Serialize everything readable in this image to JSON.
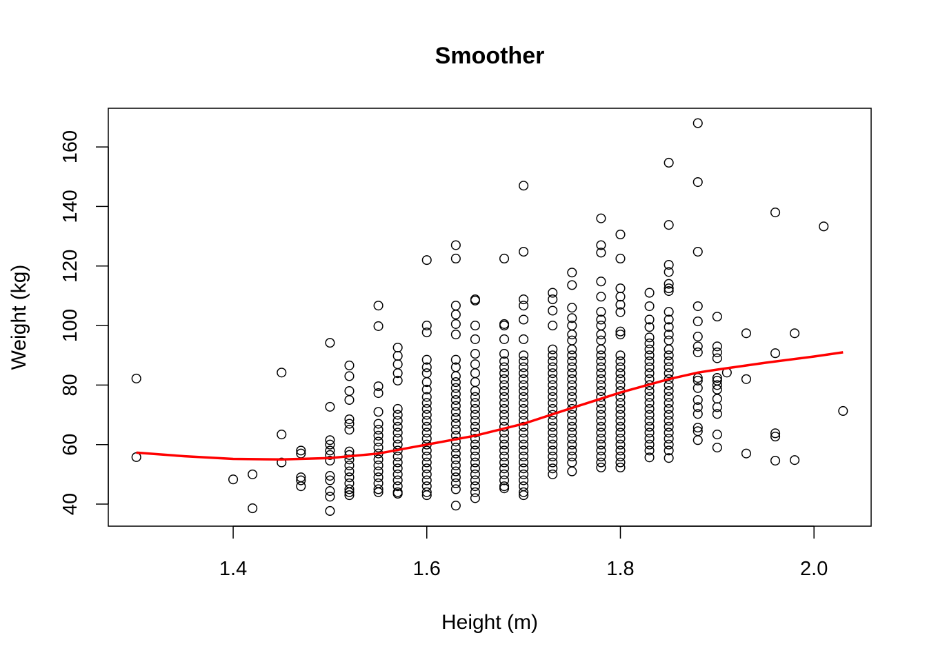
{
  "chart_data": {
    "type": "scatter",
    "title": "Smoother",
    "xlabel": "Height (m)",
    "ylabel": "Weight (kg)",
    "xlim": [
      1.271,
      2.059
    ],
    "ylim": [
      32.6,
      173
    ],
    "xticks": [
      1.4,
      1.6,
      1.8,
      2.0
    ],
    "xtick_labels": [
      "1.4",
      "1.6",
      "1.8",
      "2.0"
    ],
    "yticks": [
      40,
      60,
      80,
      100,
      120,
      140,
      160
    ],
    "ytick_labels": [
      "40",
      "60",
      "80",
      "100",
      "120",
      "140",
      "160"
    ],
    "grid": false,
    "point_color": "#000000",
    "smoother_color": "#ff0000",
    "points": [
      {
        "x": 1.3,
        "w": [
          82.2,
          55.8
        ]
      },
      {
        "x": 1.4,
        "w": [
          48.3
        ]
      },
      {
        "x": 1.42,
        "w": [
          50,
          38.6
        ]
      },
      {
        "x": 1.45,
        "w": [
          84.2,
          63.4,
          54
        ]
      },
      {
        "x": 1.47,
        "w": [
          58,
          57,
          49,
          48,
          46
        ]
      },
      {
        "x": 1.5,
        "w": [
          94.2,
          72.7,
          61.5,
          60,
          58,
          56.5,
          54.6,
          49.5,
          48,
          44.4,
          42.5,
          37.7
        ]
      },
      {
        "x": 1.52,
        "w": [
          86.6,
          83,
          78,
          75,
          68.5,
          67,
          65,
          57.7,
          56.5,
          55,
          53,
          51,
          49,
          47,
          45,
          44,
          43
        ]
      },
      {
        "x": 1.55,
        "w": [
          106.7,
          99.8,
          79.6,
          77.3,
          71,
          67,
          65,
          63,
          61,
          59,
          57,
          55,
          53,
          51,
          49,
          47,
          45,
          44
        ]
      },
      {
        "x": 1.57,
        "w": [
          92.6,
          89.8,
          87,
          84,
          81.5,
          72,
          70,
          68,
          66,
          64,
          62,
          60,
          58,
          56,
          54,
          52,
          50,
          48,
          46,
          44,
          43.5
        ]
      },
      {
        "x": 1.6,
        "w": [
          122,
          100,
          97.7,
          88.5,
          86,
          84,
          81,
          78.5,
          76,
          74,
          72,
          70,
          68,
          66,
          64,
          62,
          60,
          58,
          56,
          54,
          52,
          50,
          48,
          46,
          44,
          43
        ]
      },
      {
        "x": 1.63,
        "w": [
          127,
          122.5,
          106.7,
          103.7,
          100.5,
          97,
          88.5,
          86,
          83,
          81,
          79,
          77,
          75,
          73,
          71,
          69,
          67,
          65,
          63,
          61,
          59,
          57,
          55,
          53,
          51,
          49,
          47,
          45,
          39.5
        ]
      },
      {
        "x": 1.65,
        "w": [
          108.8,
          108.4,
          100,
          95.4,
          90.5,
          87,
          84,
          81,
          78,
          76,
          74,
          72,
          70,
          68,
          66,
          64,
          62,
          60,
          58,
          56,
          54,
          52,
          50,
          48,
          46,
          44,
          42
        ]
      },
      {
        "x": 1.68,
        "w": [
          122.5,
          100.5,
          100,
          95.4,
          90.5,
          88,
          86,
          84,
          82,
          80,
          78,
          76,
          74,
          72,
          70,
          68,
          66,
          64,
          62,
          60,
          58,
          56,
          54,
          52,
          50,
          48,
          46,
          45.3
        ]
      },
      {
        "x": 1.7,
        "w": [
          147,
          124.8,
          108.8,
          106.7,
          102,
          95.4,
          90,
          88,
          86,
          84,
          82,
          80,
          78,
          76,
          74,
          72,
          70,
          68,
          66,
          64,
          62,
          60,
          58,
          56,
          54,
          52,
          50,
          48,
          46,
          44,
          43
        ]
      },
      {
        "x": 1.73,
        "w": [
          111,
          108.8,
          105,
          100,
          92,
          90,
          88,
          86,
          84,
          82,
          80,
          78,
          76,
          74,
          72,
          70,
          68,
          66,
          64,
          62,
          60,
          58,
          56,
          54,
          52,
          50
        ]
      },
      {
        "x": 1.75,
        "w": [
          117.8,
          113.6,
          106,
          102.5,
          100,
          97,
          95,
          92,
          90,
          88,
          86,
          84,
          82,
          80,
          78,
          76,
          74,
          72,
          70,
          68,
          66,
          64,
          62,
          60,
          58,
          56,
          54,
          51
        ]
      },
      {
        "x": 1.78,
        "w": [
          136,
          127,
          124.5,
          114.8,
          109.7,
          104.6,
          102,
          100,
          97,
          95,
          92,
          90,
          88,
          86,
          84,
          82,
          80,
          78,
          76,
          74,
          72,
          70,
          68,
          66,
          64,
          62,
          60,
          58,
          56,
          54,
          52.3
        ]
      },
      {
        "x": 1.8,
        "w": [
          130.6,
          122.5,
          112.5,
          109.7,
          107,
          104.5,
          98,
          97,
          90,
          88,
          86,
          84,
          82,
          80,
          78,
          76,
          74,
          72,
          70,
          68,
          66,
          64,
          62,
          60,
          58,
          56,
          54,
          52.3
        ]
      },
      {
        "x": 1.83,
        "w": [
          111,
          106.5,
          102,
          99.5,
          96,
          94,
          92,
          90,
          88,
          86,
          84,
          82,
          80,
          78,
          76,
          74,
          72,
          70,
          68,
          66,
          64,
          62,
          60,
          58,
          55.7
        ]
      },
      {
        "x": 1.85,
        "w": [
          154.7,
          133.8,
          120.4,
          118,
          114,
          112.5,
          111.6,
          104.6,
          102,
          99.5,
          97,
          95,
          92,
          90,
          88,
          86,
          84,
          82,
          80,
          78,
          76,
          74,
          72,
          70,
          68,
          66,
          64,
          62,
          60,
          58,
          55.5
        ]
      },
      {
        "x": 1.88,
        "w": [
          168,
          148.2,
          124.8,
          106.5,
          101.4,
          96.3,
          93,
          91,
          82.4,
          81.5,
          79,
          75,
          72.6,
          70.3,
          65.7,
          64.5,
          61.5
        ]
      },
      {
        "x": 1.9,
        "w": [
          103,
          93,
          91,
          89,
          82.4,
          81.5,
          80,
          78.5,
          75.4,
          72.6,
          70.3,
          63.4,
          59
        ]
      },
      {
        "x": 1.91,
        "w": [
          84.2
        ]
      },
      {
        "x": 1.93,
        "w": [
          97.4,
          82,
          57
        ]
      },
      {
        "x": 1.96,
        "w": [
          138,
          90.7,
          63.8,
          62.7,
          54.6
        ]
      },
      {
        "x": 1.98,
        "w": [
          97.4,
          54.8
        ]
      },
      {
        "x": 2.01,
        "w": [
          133.3
        ]
      },
      {
        "x": 2.03,
        "w": [
          71.3
        ]
      }
    ],
    "smoother": {
      "x": [
        1.3,
        1.35,
        1.4,
        1.45,
        1.5,
        1.55,
        1.6,
        1.65,
        1.7,
        1.75,
        1.8,
        1.85,
        1.88,
        1.9,
        1.95,
        2.0,
        2.03
      ],
      "y": [
        57.3,
        56.1,
        55.2,
        55.0,
        55.5,
        57.0,
        60.0,
        63.0,
        67.0,
        72.3,
        77.5,
        82.0,
        84.2,
        85.2,
        87.5,
        89.6,
        91.0
      ]
    }
  }
}
